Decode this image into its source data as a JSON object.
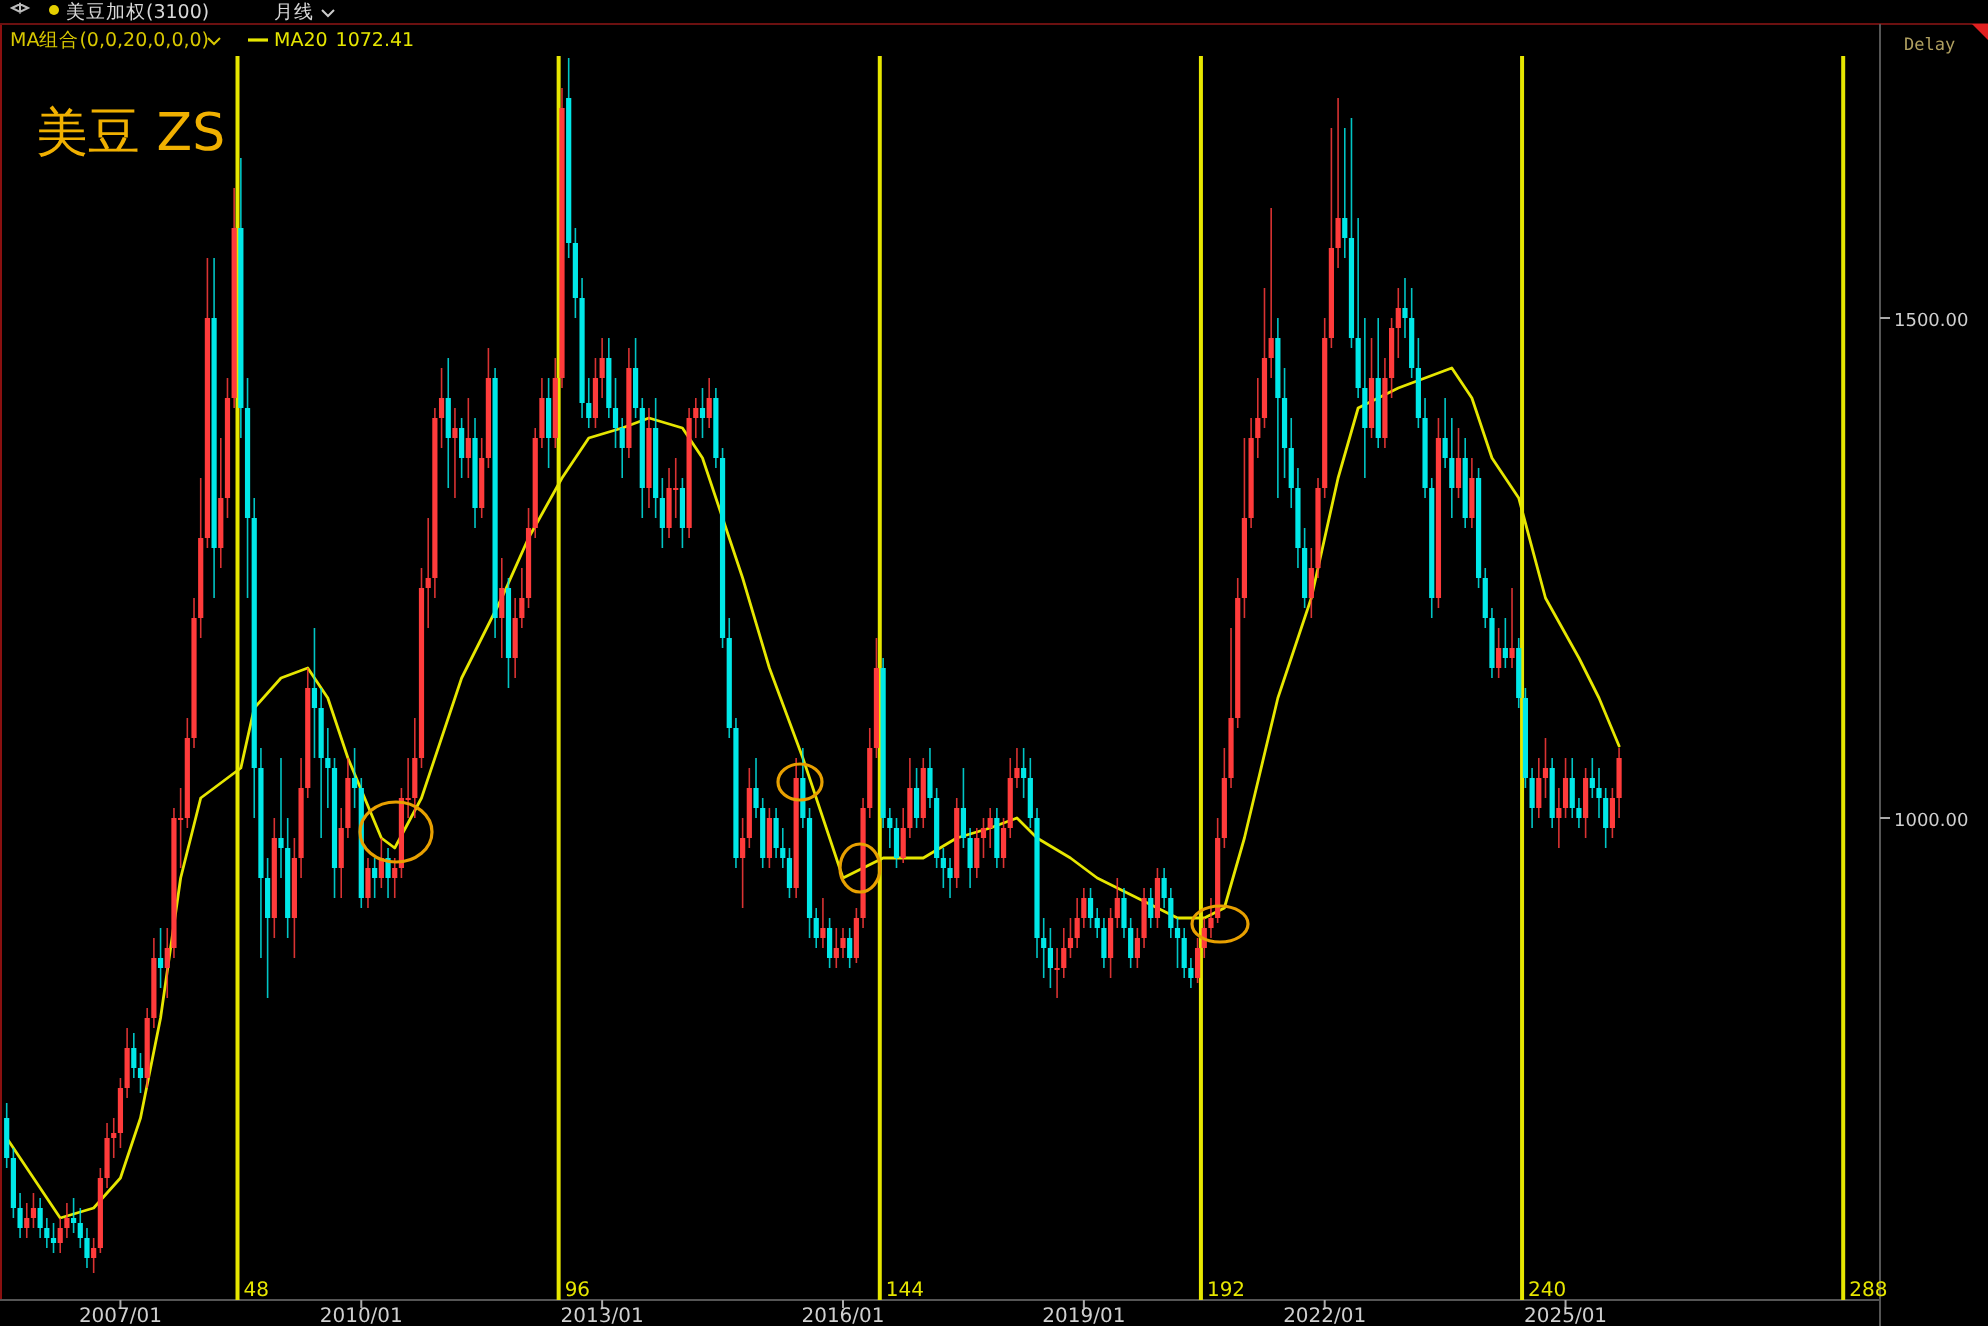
{
  "chart_data": {
    "type": "candlestick",
    "title": "美豆 ZS",
    "annotations": [
      "美豆加权(3100)",
      "月线",
      "MA组合(0,0,20,0,0,0)",
      "1072.41",
      "Delay"
    ],
    "legend": "top left",
    "x": [
      "2005-08",
      "2005-09",
      "2005-10",
      "2005-11",
      "2005-12",
      "2006-01",
      "2006-02",
      "2006-03",
      "2006-04",
      "2006-05",
      "2006-06",
      "2006-07",
      "2006-08",
      "2006-09",
      "2006-10",
      "2006-11",
      "2006-12",
      "2007-01",
      "2007-02",
      "2007-03",
      "2007-04",
      "2007-05",
      "2007-06",
      "2007-07",
      "2007-08",
      "2007-09",
      "2007-10",
      "2007-11",
      "2007-12",
      "2008-01",
      "2008-02",
      "2008-03",
      "2008-04",
      "2008-05",
      "2008-06",
      "2008-07",
      "2008-08",
      "2008-09",
      "2008-10",
      "2008-11",
      "2008-12",
      "2009-01",
      "2009-02",
      "2009-03",
      "2009-04",
      "2009-05",
      "2009-06",
      "2009-07",
      "2009-08",
      "2009-09",
      "2009-10",
      "2009-11",
      "2009-12",
      "2010-01",
      "2010-02",
      "2010-03",
      "2010-04",
      "2010-05",
      "2010-06",
      "2010-07",
      "2010-08",
      "2010-09",
      "2010-10",
      "2010-11",
      "2010-12",
      "2011-01",
      "2011-02",
      "2011-03",
      "2011-04",
      "2011-05",
      "2011-06",
      "2011-07",
      "2011-08",
      "2011-09",
      "2011-10",
      "2011-11",
      "2011-12",
      "2012-01",
      "2012-02",
      "2012-03",
      "2012-04",
      "2012-05",
      "2012-06",
      "2012-07",
      "2012-08",
      "2012-09",
      "2012-10",
      "2012-11",
      "2012-12",
      "2013-01",
      "2013-02",
      "2013-03",
      "2013-04",
      "2013-05",
      "2013-06",
      "2013-07",
      "2013-08",
      "2013-09",
      "2013-10",
      "2013-11",
      "2013-12",
      "2014-01",
      "2014-02",
      "2014-03",
      "2014-04",
      "2014-05",
      "2014-06",
      "2014-07",
      "2014-08",
      "2014-09",
      "2014-10",
      "2014-11",
      "2014-12",
      "2015-01",
      "2015-02",
      "2015-03",
      "2015-04",
      "2015-05",
      "2015-06",
      "2015-07",
      "2015-08",
      "2015-09",
      "2015-10",
      "2015-11",
      "2015-12",
      "2016-01",
      "2016-02",
      "2016-03",
      "2016-04",
      "2016-05",
      "2016-06",
      "2016-07",
      "2016-08",
      "2016-09",
      "2016-10",
      "2016-11",
      "2016-12",
      "2017-01",
      "2017-02",
      "2017-03",
      "2017-04",
      "2017-05",
      "2017-06",
      "2017-07",
      "2017-08",
      "2017-09",
      "2017-10",
      "2017-11",
      "2017-12",
      "2018-01",
      "2018-02",
      "2018-03",
      "2018-04",
      "2018-05",
      "2018-06",
      "2018-07",
      "2018-08",
      "2018-09",
      "2018-10",
      "2018-11",
      "2018-12",
      "2019-01",
      "2019-02",
      "2019-03",
      "2019-04",
      "2019-05",
      "2019-06",
      "2019-07",
      "2019-08",
      "2019-09",
      "2019-10",
      "2019-11",
      "2019-12",
      "2020-01",
      "2020-02",
      "2020-03",
      "2020-04",
      "2020-05",
      "2020-06",
      "2020-07",
      "2020-08",
      "2020-09",
      "2020-10",
      "2020-11",
      "2020-12",
      "2021-01",
      "2021-02",
      "2021-03",
      "2021-04",
      "2021-05",
      "2021-06",
      "2021-07",
      "2021-08",
      "2021-09",
      "2021-10",
      "2021-11",
      "2021-12",
      "2022-01",
      "2022-02",
      "2022-03",
      "2022-04",
      "2022-05",
      "2022-06",
      "2022-07",
      "2022-08",
      "2022-09",
      "2022-10",
      "2022-11",
      "2022-12",
      "2023-01",
      "2023-02",
      "2023-03",
      "2023-04",
      "2023-05",
      "2023-06",
      "2023-07",
      "2023-08",
      "2023-09",
      "2023-10",
      "2023-11",
      "2023-12",
      "2024-01",
      "2024-02",
      "2024-03",
      "2024-04",
      "2024-05",
      "2024-06",
      "2024-07",
      "2024-08",
      "2024-09",
      "2024-10",
      "2024-11",
      "2024-12",
      "2025-01",
      "2025-02",
      "2025-03",
      "2025-04",
      "2025-05",
      "2025-06",
      "2025-07",
      "2025-08",
      "2025-09"
    ],
    "ohlc": [
      [
        700,
        715,
        650,
        660
      ],
      [
        660,
        670,
        600,
        610
      ],
      [
        610,
        625,
        580,
        590
      ],
      [
        590,
        615,
        580,
        600
      ],
      [
        600,
        625,
        590,
        610
      ],
      [
        610,
        620,
        580,
        590
      ],
      [
        590,
        600,
        570,
        580
      ],
      [
        580,
        595,
        565,
        575
      ],
      [
        575,
        600,
        565,
        590
      ],
      [
        590,
        615,
        580,
        600
      ],
      [
        600,
        620,
        585,
        595
      ],
      [
        595,
        610,
        570,
        580
      ],
      [
        580,
        590,
        550,
        560
      ],
      [
        560,
        580,
        545,
        570
      ],
      [
        570,
        650,
        565,
        640
      ],
      [
        640,
        695,
        630,
        680
      ],
      [
        680,
        700,
        660,
        685
      ],
      [
        685,
        740,
        670,
        730
      ],
      [
        730,
        790,
        720,
        770
      ],
      [
        770,
        785,
        740,
        750
      ],
      [
        750,
        765,
        725,
        740
      ],
      [
        740,
        810,
        730,
        800
      ],
      [
        800,
        880,
        790,
        860
      ],
      [
        860,
        890,
        830,
        850
      ],
      [
        850,
        890,
        820,
        870
      ],
      [
        870,
        1010,
        860,
        1000
      ],
      [
        1000,
        1030,
        950,
        1000
      ],
      [
        1000,
        1100,
        990,
        1080
      ],
      [
        1080,
        1220,
        1070,
        1200
      ],
      [
        1200,
        1340,
        1180,
        1280
      ],
      [
        1280,
        1560,
        1270,
        1500
      ],
      [
        1500,
        1560,
        1220,
        1270
      ],
      [
        1270,
        1380,
        1250,
        1320
      ],
      [
        1320,
        1440,
        1300,
        1420
      ],
      [
        1420,
        1630,
        1410,
        1590
      ],
      [
        1590,
        1660,
        1380,
        1410
      ],
      [
        1410,
        1440,
        1220,
        1300
      ],
      [
        1300,
        1320,
        1000,
        1050
      ],
      [
        1050,
        1070,
        860,
        940
      ],
      [
        940,
        960,
        820,
        900
      ],
      [
        900,
        1000,
        880,
        980
      ],
      [
        980,
        1060,
        940,
        970
      ],
      [
        970,
        1000,
        880,
        900
      ],
      [
        900,
        980,
        860,
        960
      ],
      [
        960,
        1060,
        940,
        1030
      ],
      [
        1030,
        1150,
        1020,
        1130
      ],
      [
        1130,
        1190,
        1060,
        1110
      ],
      [
        1110,
        1130,
        980,
        1060
      ],
      [
        1060,
        1090,
        1010,
        1050
      ],
      [
        1050,
        1060,
        920,
        950
      ],
      [
        950,
        1010,
        920,
        990
      ],
      [
        990,
        1060,
        980,
        1040
      ],
      [
        1040,
        1070,
        1010,
        1030
      ],
      [
        1030,
        1040,
        910,
        920
      ],
      [
        920,
        960,
        910,
        950
      ],
      [
        950,
        960,
        920,
        940
      ],
      [
        940,
        980,
        930,
        960
      ],
      [
        960,
        970,
        920,
        940
      ],
      [
        940,
        960,
        920,
        950
      ],
      [
        950,
        1030,
        940,
        1020
      ],
      [
        1020,
        1060,
        1000,
        1020
      ],
      [
        1020,
        1100,
        1000,
        1060
      ],
      [
        1060,
        1250,
        1050,
        1230
      ],
      [
        1230,
        1300,
        1190,
        1240
      ],
      [
        1240,
        1410,
        1220,
        1400
      ],
      [
        1400,
        1450,
        1370,
        1420
      ],
      [
        1420,
        1460,
        1330,
        1380
      ],
      [
        1380,
        1410,
        1320,
        1390
      ],
      [
        1390,
        1400,
        1340,
        1360
      ],
      [
        1360,
        1420,
        1340,
        1380
      ],
      [
        1380,
        1400,
        1290,
        1310
      ],
      [
        1310,
        1380,
        1300,
        1360
      ],
      [
        1360,
        1470,
        1350,
        1440
      ],
      [
        1440,
        1450,
        1180,
        1200
      ],
      [
        1200,
        1260,
        1160,
        1230
      ],
      [
        1230,
        1240,
        1130,
        1160
      ],
      [
        1160,
        1220,
        1140,
        1200
      ],
      [
        1200,
        1250,
        1190,
        1220
      ],
      [
        1220,
        1310,
        1210,
        1290
      ],
      [
        1290,
        1390,
        1280,
        1380
      ],
      [
        1380,
        1440,
        1370,
        1420
      ],
      [
        1420,
        1440,
        1350,
        1380
      ],
      [
        1380,
        1460,
        1370,
        1440
      ],
      [
        1440,
        1730,
        1430,
        1710
      ],
      [
        1720,
        1760,
        1560,
        1575
      ],
      [
        1575,
        1590,
        1500,
        1520
      ],
      [
        1520,
        1540,
        1400,
        1415
      ],
      [
        1415,
        1440,
        1390,
        1400
      ],
      [
        1400,
        1460,
        1390,
        1440
      ],
      [
        1440,
        1480,
        1420,
        1460
      ],
      [
        1460,
        1480,
        1400,
        1410
      ],
      [
        1410,
        1440,
        1370,
        1390
      ],
      [
        1390,
        1400,
        1340,
        1370
      ],
      [
        1370,
        1470,
        1360,
        1450
      ],
      [
        1450,
        1480,
        1400,
        1410
      ],
      [
        1410,
        1420,
        1300,
        1330
      ],
      [
        1330,
        1410,
        1310,
        1390
      ],
      [
        1390,
        1420,
        1300,
        1320
      ],
      [
        1320,
        1340,
        1270,
        1290
      ],
      [
        1290,
        1350,
        1280,
        1330
      ],
      [
        1330,
        1360,
        1300,
        1330
      ],
      [
        1330,
        1340,
        1270,
        1290
      ],
      [
        1290,
        1410,
        1280,
        1400
      ],
      [
        1400,
        1420,
        1380,
        1410
      ],
      [
        1410,
        1430,
        1380,
        1400
      ],
      [
        1400,
        1440,
        1390,
        1420
      ],
      [
        1420,
        1430,
        1350,
        1360
      ],
      [
        1360,
        1370,
        1170,
        1180
      ],
      [
        1180,
        1200,
        1080,
        1090
      ],
      [
        1090,
        1100,
        950,
        960
      ],
      [
        960,
        1000,
        910,
        980
      ],
      [
        980,
        1050,
        970,
        1030
      ],
      [
        1030,
        1060,
        1000,
        1010
      ],
      [
        1010,
        1020,
        950,
        960
      ],
      [
        960,
        1010,
        950,
        1000
      ],
      [
        1000,
        1010,
        960,
        970
      ],
      [
        970,
        990,
        950,
        960
      ],
      [
        960,
        970,
        920,
        930
      ],
      [
        930,
        1060,
        920,
        1040
      ],
      [
        1040,
        1070,
        990,
        1000
      ],
      [
        1000,
        1010,
        880,
        900
      ],
      [
        900,
        910,
        870,
        880
      ],
      [
        880,
        920,
        870,
        890
      ],
      [
        890,
        900,
        850,
        860
      ],
      [
        860,
        890,
        850,
        870
      ],
      [
        870,
        890,
        860,
        880
      ],
      [
        880,
        890,
        850,
        860
      ],
      [
        860,
        910,
        855,
        900
      ],
      [
        900,
        1020,
        890,
        1010
      ],
      [
        1010,
        1090,
        1000,
        1070
      ],
      [
        1070,
        1180,
        1060,
        1150
      ],
      [
        1150,
        1160,
        990,
        1000
      ],
      [
        1000,
        1010,
        970,
        990
      ],
      [
        990,
        1000,
        950,
        960
      ],
      [
        960,
        1010,
        955,
        990
      ],
      [
        990,
        1060,
        980,
        1030
      ],
      [
        1030,
        1050,
        990,
        1000
      ],
      [
        1000,
        1060,
        990,
        1050
      ],
      [
        1050,
        1070,
        1010,
        1020
      ],
      [
        1020,
        1030,
        950,
        960
      ],
      [
        960,
        970,
        930,
        950
      ],
      [
        950,
        960,
        920,
        940
      ],
      [
        940,
        1020,
        930,
        1010
      ],
      [
        1010,
        1050,
        970,
        980
      ],
      [
        980,
        990,
        930,
        950
      ],
      [
        950,
        990,
        940,
        980
      ],
      [
        980,
        1000,
        960,
        990
      ],
      [
        990,
        1010,
        970,
        1000
      ],
      [
        1000,
        1010,
        950,
        960
      ],
      [
        960,
        1000,
        950,
        990
      ],
      [
        990,
        1060,
        980,
        1040
      ],
      [
        1040,
        1070,
        1030,
        1050
      ],
      [
        1050,
        1070,
        1020,
        1040
      ],
      [
        1040,
        1060,
        990,
        1000
      ],
      [
        1000,
        1010,
        860,
        880
      ],
      [
        880,
        900,
        840,
        870
      ],
      [
        870,
        890,
        830,
        850
      ],
      [
        850,
        870,
        820,
        850
      ],
      [
        850,
        890,
        840,
        870
      ],
      [
        870,
        900,
        860,
        880
      ],
      [
        880,
        920,
        870,
        900
      ],
      [
        900,
        930,
        890,
        920
      ],
      [
        920,
        930,
        890,
        900
      ],
      [
        900,
        910,
        880,
        890
      ],
      [
        890,
        900,
        850,
        860
      ],
      [
        860,
        910,
        840,
        900
      ],
      [
        900,
        940,
        890,
        920
      ],
      [
        920,
        930,
        880,
        890
      ],
      [
        890,
        900,
        850,
        860
      ],
      [
        860,
        890,
        850,
        880
      ],
      [
        880,
        930,
        870,
        920
      ],
      [
        920,
        930,
        890,
        900
      ],
      [
        900,
        950,
        890,
        940
      ],
      [
        940,
        950,
        910,
        920
      ],
      [
        920,
        930,
        880,
        890
      ],
      [
        890,
        900,
        850,
        880
      ],
      [
        880,
        890,
        840,
        850
      ],
      [
        850,
        860,
        830,
        840
      ],
      [
        840,
        880,
        835,
        870
      ],
      [
        870,
        900,
        860,
        890
      ],
      [
        890,
        920,
        880,
        900
      ],
      [
        900,
        1000,
        895,
        980
      ],
      [
        980,
        1070,
        970,
        1040
      ],
      [
        1040,
        1190,
        1030,
        1100
      ],
      [
        1100,
        1240,
        1090,
        1220
      ],
      [
        1220,
        1380,
        1200,
        1300
      ],
      [
        1300,
        1400,
        1290,
        1380
      ],
      [
        1380,
        1440,
        1360,
        1400
      ],
      [
        1400,
        1530,
        1390,
        1460
      ],
      [
        1460,
        1610,
        1440,
        1480
      ],
      [
        1480,
        1500,
        1320,
        1420
      ],
      [
        1420,
        1450,
        1340,
        1370
      ],
      [
        1370,
        1400,
        1310,
        1330
      ],
      [
        1330,
        1350,
        1250,
        1270
      ],
      [
        1270,
        1290,
        1210,
        1220
      ],
      [
        1220,
        1270,
        1200,
        1250
      ],
      [
        1250,
        1340,
        1240,
        1330
      ],
      [
        1330,
        1500,
        1320,
        1480
      ],
      [
        1480,
        1690,
        1470,
        1570
      ],
      [
        1570,
        1720,
        1550,
        1600
      ],
      [
        1600,
        1690,
        1560,
        1580
      ],
      [
        1580,
        1700,
        1470,
        1480
      ],
      [
        1480,
        1600,
        1420,
        1430
      ],
      [
        1430,
        1500,
        1340,
        1390
      ],
      [
        1390,
        1480,
        1380,
        1440
      ],
      [
        1440,
        1500,
        1370,
        1380
      ],
      [
        1380,
        1460,
        1370,
        1440
      ],
      [
        1440,
        1500,
        1420,
        1490
      ],
      [
        1490,
        1530,
        1460,
        1510
      ],
      [
        1510,
        1540,
        1480,
        1500
      ],
      [
        1500,
        1530,
        1440,
        1450
      ],
      [
        1450,
        1480,
        1390,
        1400
      ],
      [
        1400,
        1420,
        1320,
        1330
      ],
      [
        1330,
        1340,
        1200,
        1220
      ],
      [
        1220,
        1400,
        1210,
        1380
      ],
      [
        1380,
        1420,
        1350,
        1360
      ],
      [
        1360,
        1400,
        1300,
        1330
      ],
      [
        1330,
        1390,
        1320,
        1360
      ],
      [
        1360,
        1380,
        1290,
        1300
      ],
      [
        1300,
        1360,
        1290,
        1340
      ],
      [
        1340,
        1350,
        1230,
        1240
      ],
      [
        1240,
        1250,
        1190,
        1200
      ],
      [
        1200,
        1210,
        1140,
        1150
      ],
      [
        1150,
        1190,
        1140,
        1170
      ],
      [
        1170,
        1200,
        1150,
        1160
      ],
      [
        1160,
        1230,
        1150,
        1170
      ],
      [
        1170,
        1180,
        1110,
        1120
      ],
      [
        1120,
        1130,
        1030,
        1040
      ],
      [
        1040,
        1050,
        990,
        1010
      ],
      [
        1010,
        1060,
        1000,
        1040
      ],
      [
        1040,
        1080,
        1020,
        1050
      ],
      [
        1050,
        1060,
        990,
        1000
      ],
      [
        1000,
        1030,
        970,
        1010
      ],
      [
        1010,
        1060,
        1000,
        1040
      ],
      [
        1040,
        1060,
        1000,
        1010
      ],
      [
        1010,
        1020,
        990,
        1000
      ],
      [
        1000,
        1050,
        980,
        1040
      ],
      [
        1040,
        1060,
        1020,
        1030
      ],
      [
        1030,
        1050,
        1000,
        1020
      ],
      [
        1020,
        1030,
        970,
        990
      ],
      [
        990,
        1030,
        980,
        1020
      ],
      [
        1020,
        1070,
        1000,
        1060
      ]
    ],
    "series": [
      {
        "name": "MA20",
        "type": "line",
        "color": "#e6e600",
        "x": [
          "2005-08",
          "2005-12",
          "2006-04",
          "2006-09",
          "2007-01",
          "2007-04",
          "2007-07",
          "2007-10",
          "2008-01",
          "2008-07",
          "2008-09",
          "2009-01",
          "2009-05",
          "2009-08",
          "2009-11",
          "2010-04",
          "2010-06",
          "2010-10",
          "2011-04",
          "2011-10",
          "2012-02",
          "2012-07",
          "2012-11",
          "2013-04",
          "2013-08",
          "2014-01",
          "2014-04",
          "2014-07",
          "2014-10",
          "2015-02",
          "2015-07",
          "2015-10",
          "2016-01",
          "2016-04",
          "2016-07",
          "2017-01",
          "2017-06",
          "2017-11",
          "2018-03",
          "2018-06",
          "2018-11",
          "2019-03",
          "2019-09",
          "2020-03",
          "2020-07",
          "2020-10",
          "2021-01",
          "2021-06",
          "2021-11",
          "2022-03",
          "2022-06",
          "2022-12",
          "2023-08",
          "2023-11",
          "2024-02",
          "2024-06",
          "2024-10",
          "2025-03",
          "2025-06",
          "2025-09"
        ],
        "values": [
          680,
          640,
          600,
          610,
          640,
          700,
          800,
          940,
          1020,
          1050,
          1110,
          1140,
          1150,
          1120,
          1060,
          980,
          970,
          1020,
          1140,
          1220,
          1280,
          1340,
          1380,
          1390,
          1400,
          1390,
          1360,
          1300,
          1240,
          1150,
          1060,
          1000,
          940,
          950,
          960,
          960,
          980,
          990,
          1000,
          980,
          960,
          940,
          920,
          900,
          900,
          910,
          980,
          1120,
          1220,
          1340,
          1410,
          1430,
          1450,
          1420,
          1360,
          1320,
          1220,
          1160,
          1120,
          1072
        ]
      }
    ],
    "xlim": [
      "2005-07",
      "2028-12"
    ],
    "xticks": [
      {
        "value": "2007-01",
        "label": "2007/01"
      },
      {
        "value": "2010-01",
        "label": "2010/01"
      },
      {
        "value": "2013-01",
        "label": "2013/01"
      },
      {
        "value": "2016-01",
        "label": "2016/01"
      },
      {
        "value": "2019-01",
        "label": "2019/01"
      },
      {
        "value": "2022-01",
        "label": "2022/01"
      },
      {
        "value": "2025-01",
        "label": "2025/01"
      }
    ],
    "ylim": [
      518,
      1794
    ],
    "yticks": [
      {
        "value": 1000,
        "label": "1000.00"
      },
      {
        "value": 1500,
        "label": "1500.00"
      }
    ],
    "ref_lines": [
      {
        "axis": "x",
        "value": "2008-07",
        "label": "48",
        "color": "#e6e600"
      },
      {
        "axis": "x",
        "value": "2012-07",
        "label": "96",
        "color": "#e6e600"
      },
      {
        "axis": "x",
        "value": "2016-07",
        "label": "144",
        "color": "#e6e600"
      },
      {
        "axis": "x",
        "value": "2020-07",
        "label": "192",
        "color": "#e6e600"
      },
      {
        "axis": "x",
        "value": "2024-07",
        "label": "240",
        "color": "#e6e600"
      },
      {
        "axis": "x",
        "value": "2028-07",
        "label": "288",
        "color": "#e6e600"
      }
    ]
  }
}
